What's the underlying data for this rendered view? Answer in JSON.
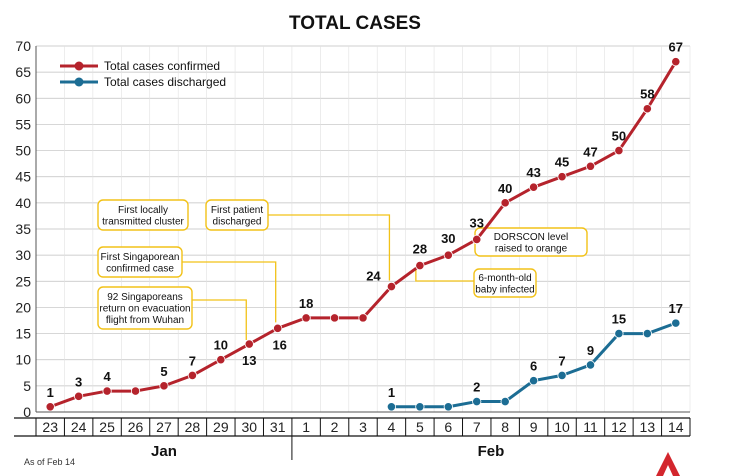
{
  "chart_data": {
    "type": "line",
    "title": "TOTAL CASES",
    "categories": [
      "23",
      "24",
      "25",
      "26",
      "27",
      "28",
      "29",
      "30",
      "31",
      "1",
      "2",
      "3",
      "4",
      "5",
      "6",
      "7",
      "8",
      "9",
      "10",
      "11",
      "12",
      "13",
      "14"
    ],
    "months": [
      {
        "label": "Jan",
        "from": 0,
        "to": 8
      },
      {
        "label": "Feb",
        "from": 9,
        "to": 22
      }
    ],
    "ylim": [
      0,
      70
    ],
    "yticks": [
      0,
      5,
      10,
      15,
      20,
      25,
      30,
      35,
      40,
      45,
      50,
      55,
      60,
      65,
      70
    ],
    "grid": true,
    "legend_position": "top-left",
    "series": [
      {
        "name": "Total cases confirmed",
        "color": "#b5232c",
        "values": [
          1,
          3,
          4,
          4,
          5,
          7,
          10,
          13,
          16,
          18,
          18,
          18,
          24,
          28,
          30,
          33,
          40,
          43,
          45,
          47,
          50,
          58,
          67
        ],
        "labeled_indices": [
          0,
          1,
          2,
          4,
          5,
          6,
          7,
          8,
          9,
          12,
          13,
          14,
          15,
          16,
          17,
          18,
          19,
          20,
          21,
          22
        ]
      },
      {
        "name": "Total cases discharged",
        "color": "#1c6d94",
        "values": [
          null,
          null,
          null,
          null,
          null,
          null,
          null,
          null,
          null,
          null,
          null,
          null,
          1,
          1,
          1,
          2,
          2,
          6,
          7,
          9,
          15,
          15,
          17
        ],
        "labeled_indices": [
          12,
          15,
          17,
          18,
          19,
          20,
          22
        ]
      }
    ],
    "annotations": [
      {
        "lines": [
          "92 Singaporeans",
          "return on evacuation",
          "flight from Wuhan"
        ],
        "index": 7
      },
      {
        "lines": [
          "First Singaporean",
          "confirmed case"
        ],
        "index": 8
      },
      {
        "lines": [
          "First locally",
          "transmitted cluster"
        ],
        "index": 12
      },
      {
        "lines": [
          "First patient",
          "discharged"
        ],
        "index": 12
      },
      {
        "lines": [
          "DORSCON level",
          "raised to orange"
        ],
        "index": 15
      },
      {
        "lines": [
          "6-month-old",
          "baby infected"
        ],
        "index": 13
      }
    ],
    "footnote": "As of Feb 14"
  }
}
